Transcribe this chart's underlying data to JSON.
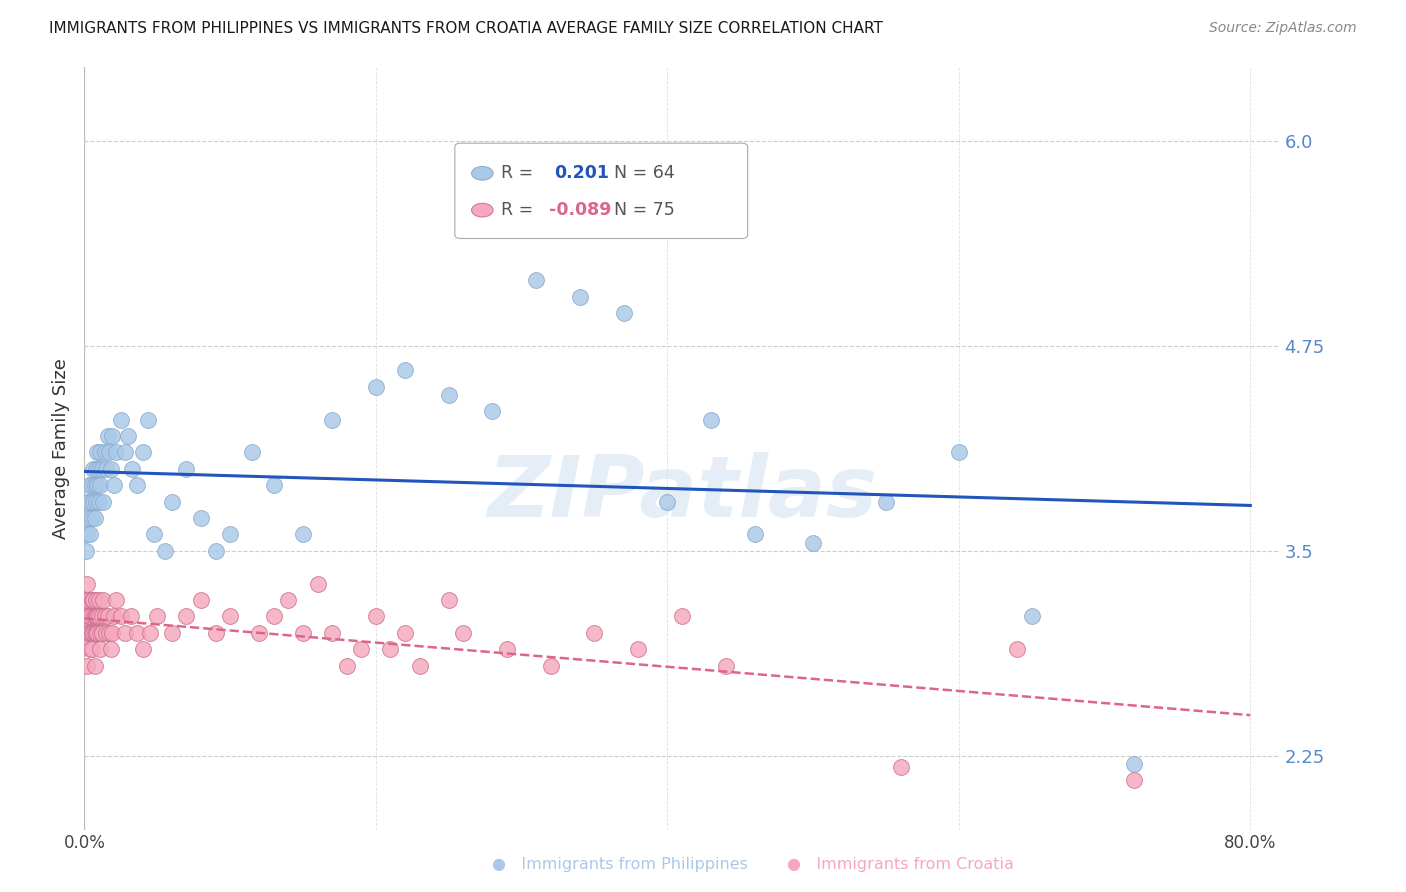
{
  "title": "IMMIGRANTS FROM PHILIPPINES VS IMMIGRANTS FROM CROATIA AVERAGE FAMILY SIZE CORRELATION CHART",
  "source": "Source: ZipAtlas.com",
  "ylabel": "Average Family Size",
  "xlim": [
    0.0,
    0.82
  ],
  "ylim": [
    1.8,
    6.45
  ],
  "yticks": [
    2.25,
    3.5,
    4.75,
    6.0
  ],
  "philippines_R": 0.201,
  "philippines_N": 64,
  "croatia_R": -0.089,
  "croatia_N": 75,
  "philippines_color": "#aac8e8",
  "croatia_color": "#f5a8be",
  "philippines_line_color": "#2255bb",
  "croatia_line_color": "#dd6688",
  "background_color": "#ffffff",
  "grid_color": "#cccccc",
  "watermark": "ZIPatlas",
  "philippines_x": [
    0.001,
    0.002,
    0.002,
    0.003,
    0.003,
    0.004,
    0.004,
    0.005,
    0.005,
    0.006,
    0.006,
    0.007,
    0.007,
    0.008,
    0.008,
    0.009,
    0.009,
    0.01,
    0.01,
    0.011,
    0.011,
    0.012,
    0.013,
    0.014,
    0.015,
    0.016,
    0.017,
    0.018,
    0.019,
    0.02,
    0.022,
    0.025,
    0.028,
    0.03,
    0.033,
    0.036,
    0.04,
    0.044,
    0.048,
    0.055,
    0.06,
    0.07,
    0.08,
    0.09,
    0.1,
    0.115,
    0.13,
    0.15,
    0.17,
    0.2,
    0.22,
    0.25,
    0.28,
    0.31,
    0.34,
    0.37,
    0.4,
    0.43,
    0.46,
    0.5,
    0.55,
    0.6,
    0.65,
    0.72
  ],
  "philippines_y": [
    3.5,
    3.6,
    3.8,
    3.7,
    3.9,
    3.6,
    3.8,
    3.7,
    3.9,
    3.8,
    4.0,
    3.7,
    3.9,
    3.8,
    4.0,
    3.9,
    4.1,
    3.8,
    4.0,
    3.9,
    4.1,
    4.0,
    3.8,
    4.1,
    4.0,
    4.2,
    4.1,
    4.0,
    4.2,
    3.9,
    4.1,
    4.3,
    4.1,
    4.2,
    4.0,
    3.9,
    4.1,
    4.3,
    3.6,
    3.5,
    3.8,
    4.0,
    3.7,
    3.5,
    3.6,
    4.1,
    3.9,
    3.6,
    4.3,
    4.5,
    4.6,
    4.45,
    4.35,
    5.15,
    5.05,
    4.95,
    3.8,
    4.3,
    3.6,
    3.55,
    3.8,
    4.1,
    3.1,
    2.2
  ],
  "croatia_x": [
    0.001,
    0.001,
    0.002,
    0.002,
    0.002,
    0.003,
    0.003,
    0.003,
    0.004,
    0.004,
    0.004,
    0.005,
    0.005,
    0.005,
    0.006,
    0.006,
    0.006,
    0.007,
    0.007,
    0.007,
    0.008,
    0.008,
    0.008,
    0.009,
    0.009,
    0.01,
    0.01,
    0.011,
    0.011,
    0.012,
    0.012,
    0.013,
    0.014,
    0.015,
    0.016,
    0.017,
    0.018,
    0.019,
    0.02,
    0.022,
    0.025,
    0.028,
    0.032,
    0.036,
    0.04,
    0.045,
    0.05,
    0.06,
    0.07,
    0.08,
    0.09,
    0.1,
    0.12,
    0.14,
    0.16,
    0.2,
    0.22,
    0.25,
    0.13,
    0.15,
    0.17,
    0.18,
    0.19,
    0.21,
    0.23,
    0.26,
    0.29,
    0.32,
    0.35,
    0.38,
    0.41,
    0.44,
    0.56,
    0.64,
    0.72
  ],
  "croatia_y": [
    3.2,
    3.1,
    3.3,
    3.0,
    2.8,
    3.1,
    3.2,
    3.0,
    2.9,
    3.1,
    3.0,
    3.2,
    2.9,
    3.0,
    3.1,
    3.2,
    3.0,
    2.8,
    3.1,
    3.0,
    3.1,
    3.2,
    3.0,
    3.1,
    3.0,
    3.2,
    3.1,
    3.0,
    2.9,
    3.0,
    3.1,
    3.2,
    3.1,
    3.0,
    3.1,
    3.0,
    2.9,
    3.0,
    3.1,
    3.2,
    3.1,
    3.0,
    3.1,
    3.0,
    2.9,
    3.0,
    3.1,
    3.0,
    3.1,
    3.2,
    3.0,
    3.1,
    3.0,
    3.2,
    3.3,
    3.1,
    3.0,
    3.2,
    3.1,
    3.0,
    3.0,
    2.8,
    2.9,
    2.9,
    2.8,
    3.0,
    2.9,
    2.8,
    3.0,
    2.9,
    3.1,
    2.8,
    2.18,
    2.9,
    2.1
  ]
}
